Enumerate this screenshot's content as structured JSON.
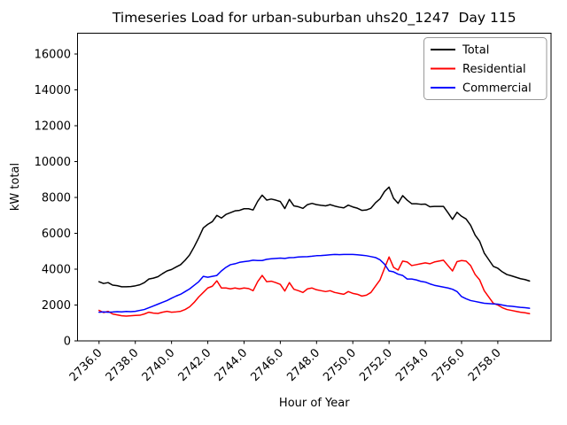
{
  "chart_data": {
    "type": "line",
    "title": "Timeseries Load for urban-suburban uhs20_1247  Day 115",
    "xlabel": "Hour of Year",
    "ylabel": "kW total",
    "x_start": 2736.0,
    "x_step": 0.25,
    "xlim": [
      2734.8125,
      2760.9375
    ],
    "ylim": [
      0,
      17160
    ],
    "xticks": [
      2736,
      2738,
      2740,
      2742,
      2744,
      2746,
      2748,
      2750,
      2752,
      2754,
      2756,
      2758
    ],
    "xtick_labels": [
      "2736.0",
      "2738.0",
      "2740.0",
      "2742.0",
      "2744.0",
      "2746.0",
      "2748.0",
      "2750.0",
      "2752.0",
      "2754.0",
      "2756.0",
      "2758.0"
    ],
    "yticks": [
      0,
      2000,
      4000,
      6000,
      8000,
      10000,
      12000,
      14000,
      16000
    ],
    "ytick_labels": [
      "0",
      "2000",
      "4000",
      "6000",
      "8000",
      "10000",
      "12000",
      "14000",
      "16000"
    ],
    "grid": false,
    "legend_position": "upper right",
    "series": [
      {
        "name": "Total",
        "color": "#000000",
        "values": [
          3300,
          3200,
          3250,
          3110,
          3080,
          3020,
          3020,
          3030,
          3070,
          3130,
          3250,
          3450,
          3500,
          3580,
          3750,
          3900,
          3980,
          4120,
          4250,
          4500,
          4800,
          5250,
          5750,
          6300,
          6500,
          6650,
          7000,
          6850,
          7050,
          7150,
          7250,
          7280,
          7370,
          7370,
          7300,
          7780,
          8130,
          7850,
          7910,
          7850,
          7770,
          7380,
          7890,
          7530,
          7480,
          7390,
          7600,
          7670,
          7600,
          7560,
          7530,
          7600,
          7520,
          7460,
          7420,
          7570,
          7470,
          7400,
          7280,
          7300,
          7400,
          7700,
          7920,
          8330,
          8580,
          7950,
          7670,
          8100,
          7850,
          7650,
          7650,
          7620,
          7630,
          7480,
          7500,
          7500,
          7500,
          7150,
          6780,
          7170,
          6950,
          6800,
          6450,
          5900,
          5550,
          4900,
          4530,
          4160,
          4050,
          3850,
          3700,
          3630,
          3550,
          3470,
          3420,
          3340
        ]
      },
      {
        "name": "Residential",
        "color": "#ff0000",
        "values": [
          1700,
          1580,
          1650,
          1500,
          1450,
          1400,
          1380,
          1400,
          1420,
          1430,
          1500,
          1600,
          1550,
          1530,
          1600,
          1650,
          1600,
          1620,
          1650,
          1750,
          1900,
          2150,
          2450,
          2700,
          2950,
          3050,
          3350,
          2950,
          2950,
          2900,
          2950,
          2900,
          2950,
          2920,
          2800,
          3300,
          3650,
          3300,
          3330,
          3250,
          3150,
          2780,
          3250,
          2880,
          2800,
          2700,
          2900,
          2950,
          2850,
          2800,
          2750,
          2800,
          2700,
          2650,
          2600,
          2750,
          2650,
          2600,
          2500,
          2550,
          2700,
          3050,
          3400,
          4050,
          4680,
          4100,
          3950,
          4450,
          4400,
          4200,
          4250,
          4300,
          4350,
          4300,
          4400,
          4450,
          4500,
          4200,
          3900,
          4420,
          4480,
          4450,
          4200,
          3700,
          3400,
          2800,
          2450,
          2100,
          2000,
          1850,
          1750,
          1700,
          1650,
          1600,
          1570,
          1520
        ]
      },
      {
        "name": "Commercial",
        "color": "#0000ff",
        "values": [
          1600,
          1620,
          1600,
          1610,
          1630,
          1620,
          1640,
          1630,
          1650,
          1700,
          1750,
          1850,
          1950,
          2050,
          2150,
          2250,
          2380,
          2500,
          2600,
          2750,
          2900,
          3100,
          3300,
          3600,
          3550,
          3600,
          3650,
          3900,
          4100,
          4250,
          4300,
          4380,
          4420,
          4450,
          4500,
          4480,
          4480,
          4550,
          4580,
          4600,
          4620,
          4600,
          4640,
          4650,
          4680,
          4690,
          4700,
          4720,
          4750,
          4760,
          4780,
          4800,
          4820,
          4810,
          4820,
          4820,
          4820,
          4800,
          4780,
          4750,
          4700,
          4650,
          4520,
          4280,
          3900,
          3850,
          3720,
          3650,
          3450,
          3450,
          3400,
          3320,
          3280,
          3180,
          3100,
          3050,
          3000,
          2950,
          2880,
          2750,
          2470,
          2350,
          2250,
          2200,
          2150,
          2100,
          2080,
          2060,
          2050,
          2000,
          1950,
          1930,
          1900,
          1870,
          1850,
          1820
        ]
      }
    ]
  }
}
